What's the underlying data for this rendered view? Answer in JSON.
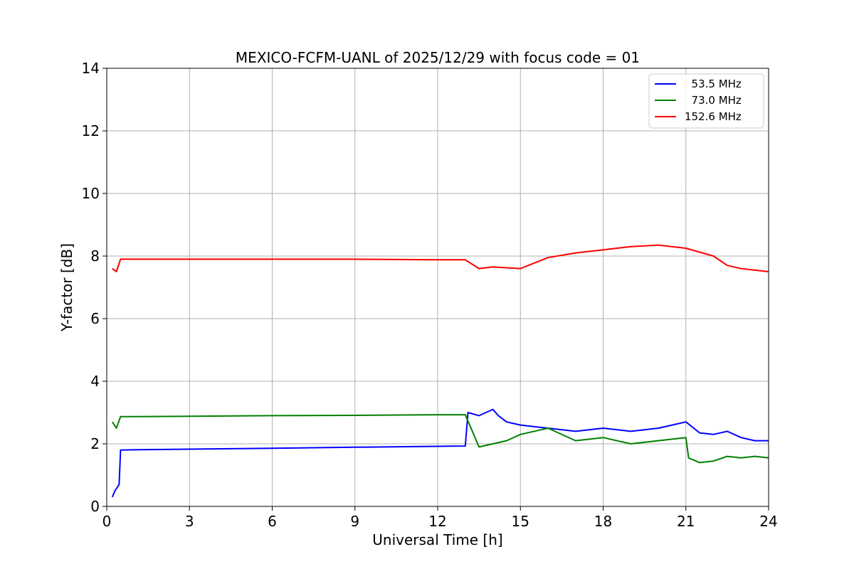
{
  "chart_data": {
    "type": "line",
    "title": "MEXICO-FCFM-UANL of 2025/12/29 with focus code = 01",
    "xlabel": "Universal Time [h]",
    "ylabel": "Y-factor [dB]",
    "xlim": [
      0,
      24
    ],
    "ylim": [
      0,
      14
    ],
    "x_ticks": [
      "0",
      "3",
      "6",
      "9",
      "12",
      "15",
      "18",
      "21",
      "24"
    ],
    "y_ticks": [
      "0",
      "2",
      "4",
      "6",
      "8",
      "10",
      "12",
      "14"
    ],
    "grid": true,
    "legend_position": "top-right",
    "series": [
      {
        "name": "  53.5 MHz",
        "color": "#0000ff",
        "x": [
          0.2,
          0.3,
          0.45,
          0.5,
          1,
          3,
          6,
          9,
          12,
          13.0,
          13.1,
          13.5,
          14.0,
          14.2,
          14.5,
          15,
          16,
          17,
          18,
          19,
          20,
          20.5,
          21,
          21.5,
          22,
          22.5,
          23,
          23.5,
          24
        ],
        "y": [
          0.3,
          0.5,
          0.7,
          1.8,
          1.81,
          1.83,
          1.86,
          1.89,
          1.92,
          1.93,
          3.0,
          2.9,
          3.1,
          2.9,
          2.7,
          2.6,
          2.5,
          2.4,
          2.5,
          2.4,
          2.5,
          2.6,
          2.7,
          2.35,
          2.3,
          2.4,
          2.2,
          2.1,
          2.1
        ]
      },
      {
        "name": "  73.0 MHz",
        "color": "#008000",
        "x": [
          0.2,
          0.35,
          0.5,
          1,
          3,
          6,
          9,
          12,
          13.0,
          13.5,
          14.5,
          15,
          16,
          17,
          18,
          19,
          20,
          21,
          21.1,
          21.5,
          22,
          22.5,
          23,
          23.5,
          24
        ],
        "y": [
          2.7,
          2.5,
          2.87,
          2.87,
          2.88,
          2.9,
          2.91,
          2.93,
          2.93,
          1.9,
          2.1,
          2.3,
          2.5,
          2.1,
          2.2,
          2.0,
          2.1,
          2.2,
          1.55,
          1.4,
          1.45,
          1.6,
          1.55,
          1.6,
          1.55
        ]
      },
      {
        "name": "152.6 MHz",
        "color": "#ff0000",
        "x": [
          0.2,
          0.35,
          0.5,
          1,
          3,
          6,
          9,
          12,
          13.0,
          13.5,
          14,
          15,
          16,
          17,
          18,
          19,
          20,
          21,
          22,
          22.5,
          23,
          24
        ],
        "y": [
          7.6,
          7.5,
          7.9,
          7.9,
          7.9,
          7.9,
          7.9,
          7.88,
          7.88,
          7.6,
          7.65,
          7.6,
          7.95,
          8.1,
          8.2,
          8.3,
          8.35,
          8.25,
          8.0,
          7.7,
          7.6,
          7.5
        ]
      }
    ]
  }
}
